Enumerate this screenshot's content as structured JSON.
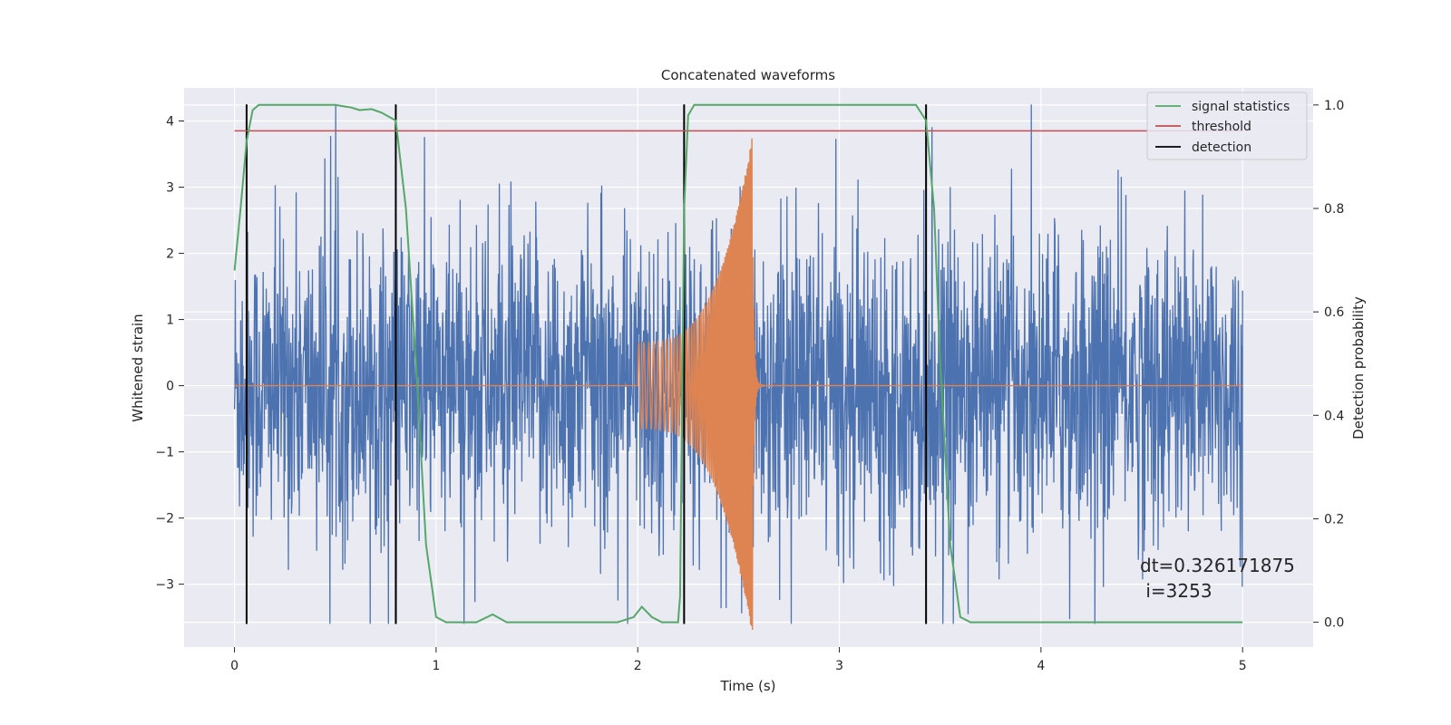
{
  "chart_data": {
    "type": "line",
    "title": "Concatenated waveforms",
    "xlabel": "Time (s)",
    "ylabel": "Whitened strain",
    "ylabel_right": "Detection probability",
    "xlim": [
      -0.25,
      5.35
    ],
    "ylim": [
      -3.95,
      4.5
    ],
    "ylim_right": [
      -0.048,
      1.033
    ],
    "x_ticks": [
      0,
      1,
      2,
      3,
      4,
      5
    ],
    "y_ticks": [
      -3,
      -2,
      -1,
      0,
      1,
      2,
      3,
      4
    ],
    "y_right_ticks": [
      0.0,
      0.2,
      0.4,
      0.6,
      0.8,
      1.0
    ],
    "x_tick_labels": [
      "0",
      "1",
      "2",
      "3",
      "4",
      "5"
    ],
    "y_tick_labels": [
      "−3",
      "−2",
      "−1",
      "0",
      "1",
      "2",
      "3",
      "4"
    ],
    "y_right_tick_labels": [
      "0.0",
      "0.2",
      "0.4",
      "0.6",
      "0.8",
      "1.0"
    ],
    "grid": true,
    "legend_position": "top-right",
    "series": [
      {
        "name": "signal statistics",
        "axis": "right",
        "color": "#55a868",
        "points": [
          [
            0,
            0.68
          ],
          [
            0.03,
            0.8
          ],
          [
            0.06,
            0.93
          ],
          [
            0.09,
            0.99
          ],
          [
            0.12,
            1.0
          ],
          [
            0.5,
            1.0
          ],
          [
            0.58,
            0.995
          ],
          [
            0.62,
            0.99
          ],
          [
            0.68,
            0.992
          ],
          [
            0.73,
            0.985
          ],
          [
            0.8,
            0.97
          ],
          [
            0.85,
            0.8
          ],
          [
            0.9,
            0.5
          ],
          [
            0.95,
            0.15
          ],
          [
            1.0,
            0.01
          ],
          [
            1.05,
            0.0
          ],
          [
            1.2,
            0.0
          ],
          [
            1.28,
            0.015
          ],
          [
            1.35,
            0.0
          ],
          [
            1.9,
            0.0
          ],
          [
            1.98,
            0.01
          ],
          [
            2.02,
            0.03
          ],
          [
            2.07,
            0.01
          ],
          [
            2.12,
            0.0
          ],
          [
            2.2,
            0.0
          ],
          [
            2.21,
            0.05
          ],
          [
            2.23,
            0.8
          ],
          [
            2.25,
            0.98
          ],
          [
            2.28,
            1.0
          ],
          [
            3.38,
            1.0
          ],
          [
            3.43,
            0.97
          ],
          [
            3.47,
            0.8
          ],
          [
            3.5,
            0.5
          ],
          [
            3.55,
            0.15
          ],
          [
            3.6,
            0.01
          ],
          [
            3.65,
            0.0
          ],
          [
            5.0,
            0.0
          ]
        ]
      },
      {
        "name": "threshold",
        "axis": "right",
        "color": "#c44e52",
        "points": [
          [
            0,
            0.95
          ],
          [
            5.0,
            0.95
          ]
        ]
      },
      {
        "name": "detection",
        "axis": "left",
        "color": "#000000",
        "x": [
          0.06,
          0.8,
          2.23,
          3.43
        ]
      }
    ],
    "extra_series": [
      {
        "id": "whitened-noise",
        "axis": "left",
        "color": "#4c72b0",
        "x_range": [
          0,
          5.0
        ],
        "amplitude": 1.35
      },
      {
        "id": "injected-waveform",
        "axis": "left",
        "color": "#dd8452",
        "x_range": [
          0,
          5.0
        ],
        "chirp_start": 2.0,
        "chirp_end": 2.57,
        "amplitude_start": 0.65,
        "amplitude_peak": 3.8
      }
    ],
    "annotation": {
      "line1": "dt=0.326171875",
      "line2": " i=3253"
    }
  },
  "colors": {
    "axes_background": "#eaeaf2",
    "grid": "#ffffff"
  }
}
